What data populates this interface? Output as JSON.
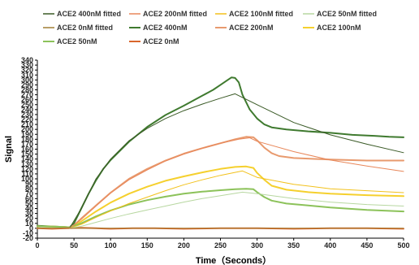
{
  "chart_data": {
    "type": "line",
    "title": "",
    "xlabel": "Time（Seconds）",
    "ylabel": "Signal",
    "xlim": [
      0,
      500
    ],
    "ylim": [
      -20,
      340
    ],
    "xticks": [
      0,
      50,
      100,
      150,
      200,
      250,
      300,
      350,
      400,
      450,
      500
    ],
    "yticks": [
      -20,
      -10,
      0,
      10,
      20,
      30,
      40,
      50,
      60,
      70,
      80,
      90,
      100,
      110,
      120,
      130,
      140,
      150,
      160,
      170,
      180,
      190,
      200,
      210,
      220,
      230,
      240,
      250,
      260,
      270,
      280,
      290,
      300,
      310,
      320,
      330,
      340
    ],
    "grid": false,
    "legend_position": "top",
    "series": [
      {
        "name": "ACE2 400nM fitted",
        "color": "#3a5a26",
        "width": 1.0,
        "x": [
          44,
          60,
          80,
          100,
          125,
          150,
          175,
          200,
          225,
          250,
          270,
          300,
          350,
          400,
          450,
          500
        ],
        "y": [
          0,
          40,
          100,
          140,
          177,
          202,
          222,
          238,
          251,
          263,
          272,
          250,
          214,
          189,
          170,
          153
        ]
      },
      {
        "name": "ACE2 200nM fitted",
        "color": "#e8875a",
        "width": 1.0,
        "x": [
          44,
          60,
          80,
          100,
          125,
          150,
          175,
          200,
          225,
          250,
          275,
          290,
          300,
          350,
          400,
          450,
          500
        ],
        "y": [
          0,
          18,
          45,
          71,
          98,
          118,
          136,
          150,
          162,
          172,
          180,
          183,
          176,
          155,
          138,
          126,
          115
        ]
      },
      {
        "name": "ACE2 100nM fitted",
        "color": "#f2c11b",
        "width": 1.0,
        "x": [
          44,
          60,
          80,
          100,
          125,
          150,
          175,
          200,
          225,
          250,
          280,
          300,
          350,
          400,
          450,
          500
        ],
        "y": [
          0,
          8,
          22,
          35,
          50,
          63,
          76,
          88,
          98,
          107,
          116,
          103,
          89,
          80,
          76,
          72
        ]
      },
      {
        "name": "ACE2 50nM fitted",
        "color": "#b7d7a0",
        "width": 1.0,
        "x": [
          44,
          60,
          80,
          100,
          125,
          150,
          175,
          200,
          225,
          250,
          280,
          300,
          350,
          400,
          450,
          500
        ],
        "y": [
          0,
          4,
          12,
          20,
          29,
          37,
          45,
          53,
          60,
          66,
          73,
          70,
          60,
          53,
          48,
          45
        ]
      },
      {
        "name": "ACE2 0nM fitted",
        "color": "#a07e34",
        "width": 1.0,
        "x": [
          0,
          100,
          200,
          300,
          400,
          500
        ],
        "y": [
          0,
          0,
          0,
          0,
          0,
          0
        ]
      },
      {
        "name": "ACE2 400nM",
        "color": "#3f7a2f",
        "width": 2.0,
        "x": [
          0,
          30,
          44,
          50,
          60,
          70,
          80,
          90,
          100,
          125,
          150,
          175,
          200,
          225,
          240,
          250,
          260,
          265,
          270,
          275,
          280,
          290,
          300,
          310,
          320,
          340,
          370,
          400,
          430,
          460,
          480,
          500
        ],
        "y": [
          5,
          3,
          2,
          10,
          40,
          70,
          97,
          120,
          138,
          175,
          205,
          229,
          248,
          268,
          280,
          290,
          300,
          305,
          304,
          295,
          270,
          240,
          222,
          210,
          204,
          200,
          196,
          193,
          189,
          187,
          185,
          184
        ]
      },
      {
        "name": "ACE2 200nM",
        "color": "#e89a6e",
        "width": 2.0,
        "x": [
          0,
          30,
          44,
          50,
          60,
          80,
          100,
          125,
          150,
          175,
          200,
          225,
          250,
          270,
          285,
          295,
          300,
          310,
          320,
          330,
          350,
          400,
          450,
          500
        ],
        "y": [
          4,
          3,
          2,
          6,
          20,
          46,
          72,
          100,
          120,
          137,
          151,
          162,
          172,
          180,
          185,
          184,
          178,
          163,
          152,
          146,
          142,
          139,
          137,
          137
        ]
      },
      {
        "name": "ACE2 100nM",
        "color": "#f5d02e",
        "width": 2.0,
        "x": [
          0,
          30,
          44,
          50,
          60,
          80,
          100,
          125,
          150,
          175,
          200,
          225,
          250,
          270,
          285,
          295,
          300,
          310,
          320,
          340,
          370,
          400,
          450,
          500
        ],
        "y": [
          4,
          3,
          2,
          5,
          14,
          34,
          52,
          70,
          84,
          96,
          105,
          113,
          120,
          124,
          125,
          122,
          112,
          98,
          86,
          78,
          73,
          70,
          67,
          65
        ]
      },
      {
        "name": "ACE2 50nM",
        "color": "#8cc25a",
        "width": 2.0,
        "x": [
          0,
          30,
          44,
          50,
          60,
          80,
          100,
          125,
          150,
          175,
          200,
          225,
          250,
          270,
          285,
          295,
          300,
          310,
          320,
          340,
          370,
          400,
          450,
          500
        ],
        "y": [
          4,
          3,
          2,
          5,
          10,
          24,
          36,
          48,
          57,
          64,
          70,
          74,
          77,
          79,
          80,
          79,
          73,
          63,
          56,
          50,
          46,
          42,
          37,
          34
        ]
      },
      {
        "name": "ACE2 0nM",
        "color": "#d9662c",
        "width": 2.0,
        "x": [
          0,
          20,
          40,
          60,
          80,
          100,
          130,
          160,
          200,
          250,
          300,
          350,
          400,
          450,
          500
        ],
        "y": [
          0,
          -1,
          0,
          1,
          0,
          -1,
          0,
          0,
          -1,
          0,
          0,
          -1,
          0,
          0,
          -1
        ]
      }
    ]
  }
}
